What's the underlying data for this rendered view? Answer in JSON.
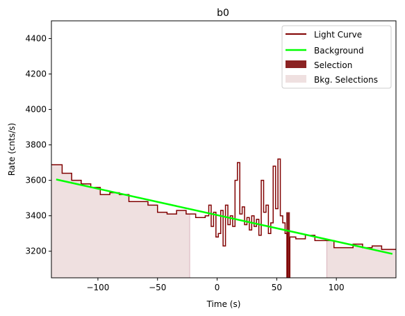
{
  "chart_data": {
    "type": "line",
    "title": "b0",
    "xlabel": "Time (s)",
    "ylabel": "Rate (cnts/s)",
    "xlim": [
      -139,
      150
    ],
    "ylim": [
      3050,
      4500
    ],
    "xticks": [
      -100,
      -50,
      0,
      50,
      100
    ],
    "xtick_labels": [
      "−100",
      "−50",
      "0",
      "50",
      "100"
    ],
    "yticks": [
      3200,
      3400,
      3600,
      3800,
      4000,
      4200,
      4400
    ],
    "ytick_labels": [
      "3200",
      "3400",
      "3600",
      "3800",
      "4000",
      "4200",
      "4400"
    ],
    "grid": false,
    "legend_position": "top-right",
    "legend": [
      "Light Curve",
      "Background",
      "Selection",
      "Bkg. Selections"
    ],
    "colors": {
      "light_curve": "#800000",
      "background": "#00ff00",
      "selection": "#8b2323",
      "bkg_selection": "#efe0e0",
      "bkg_selection_edge": "#d9b3bd"
    },
    "series": [
      {
        "name": "Light Curve",
        "type": "step",
        "x": [
          -139,
          -130,
          -122,
          -114,
          -106,
          -98,
          -90,
          -82,
          -74,
          -66,
          -58,
          -50,
          -42,
          -34,
          -26,
          -18,
          -10,
          -7,
          -5,
          -3,
          -1,
          1,
          3,
          5,
          7,
          9,
          11,
          13,
          15,
          17,
          19,
          21,
          23,
          25,
          27,
          29,
          31,
          33,
          35,
          37,
          39,
          41,
          43,
          45,
          47,
          49,
          51,
          53,
          55,
          57,
          59,
          61,
          66,
          74,
          82,
          90,
          98,
          106,
          114,
          122,
          130,
          138,
          150
        ],
        "y": [
          3688,
          3640,
          3600,
          3580,
          3560,
          3520,
          3530,
          3520,
          3480,
          3480,
          3460,
          3420,
          3410,
          3430,
          3410,
          3390,
          3400,
          3460,
          3340,
          3420,
          3280,
          3300,
          3430,
          3230,
          3460,
          3350,
          3400,
          3340,
          3600,
          3700,
          3410,
          3450,
          3350,
          3390,
          3320,
          3400,
          3340,
          3380,
          3290,
          3600,
          3420,
          3460,
          3300,
          3360,
          3680,
          3440,
          3720,
          3400,
          3360,
          3300,
          3050,
          3280,
          3270,
          3290,
          3260,
          3260,
          3220,
          3220,
          3240,
          3220,
          3230,
          3210,
          3210
        ]
      },
      {
        "name": "Background",
        "type": "line",
        "x": [
          -135,
          147
        ],
        "y": [
          3605,
          3185
        ]
      }
    ],
    "selection": {
      "x_start": 58,
      "x_end": 61
    },
    "bkg_selections": [
      {
        "x_start": -139,
        "x_end": -23
      },
      {
        "x_start": 92,
        "x_end": 150
      }
    ]
  }
}
